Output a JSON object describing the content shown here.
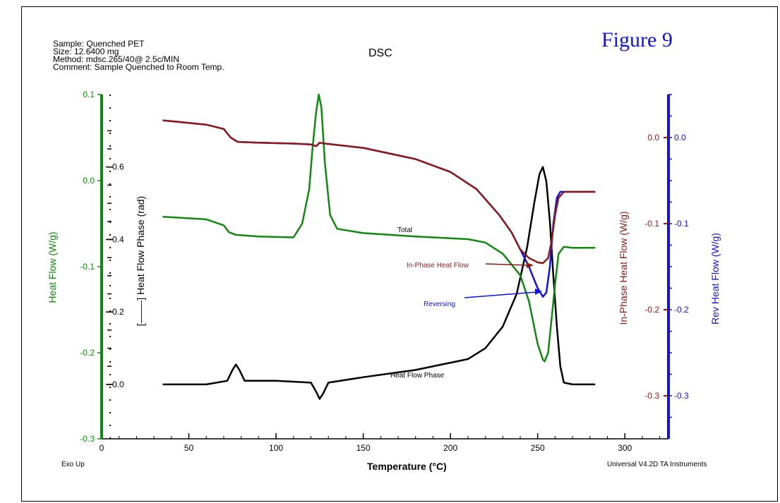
{
  "header": {
    "sample": "Sample: Quenched PET",
    "size": "Size:  12.6400 mg",
    "method": "Method: mdsc.265/40@ 2.5c/MIN",
    "comment": "Comment: Sample Quenched to Room Temp."
  },
  "figure_label": "Figure 9",
  "footer": {
    "exo": "Exo Up",
    "software": "Universal V4.2D TA Instruments"
  },
  "chart_data": {
    "type": "line",
    "title": "DSC",
    "xlabel": "Temperature (°C)",
    "xlim": [
      0,
      325
    ],
    "x_ticks": [
      0,
      50,
      100,
      150,
      200,
      250,
      300
    ],
    "axes": {
      "left_outer": {
        "label": "Heat Flow (W/g)",
        "color": "#128812",
        "ylim": [
          -0.3,
          0.1
        ],
        "ticks": [
          "0.1",
          "0.0",
          "-0.1",
          "-0.2",
          "-0.3"
        ],
        "tick_values": [
          0.1,
          0.0,
          -0.1,
          -0.2,
          -0.3
        ]
      },
      "left_inner": {
        "label": "[——-] Heat Flow Phase (rad)",
        "color": "#000000",
        "ticks": [
          "0.6",
          "0.4",
          "0.2",
          "0.0"
        ],
        "tick_values": [
          0.6,
          0.4,
          0.2,
          0.0
        ],
        "ylim": [
          -0.15,
          0.8
        ]
      },
      "right_inner": {
        "label": "In-Phase Heat Flow (W/g)",
        "color": "#8b1a1a",
        "ylim": [
          -0.35,
          0.05
        ],
        "ticks": [
          "0.0",
          "-0.1",
          "-0.2",
          "-0.3"
        ],
        "tick_values": [
          0.0,
          -0.1,
          -0.2,
          -0.3
        ]
      },
      "right_outer": {
        "label": "Rev Heat Flow (W/g)",
        "color": "#1212dd",
        "ylim": [
          -0.35,
          0.05
        ],
        "ticks": [
          "0.0",
          "-0.1",
          "-0.2",
          "-0.3"
        ],
        "tick_values": [
          0.0,
          -0.1,
          -0.2,
          -0.3
        ]
      }
    },
    "series": [
      {
        "name": "Total",
        "axis": "left_outer",
        "color": "#128812",
        "x": [
          35,
          60,
          70,
          73,
          77,
          90,
          110,
          115,
          119,
          121,
          123,
          124.5,
          126,
          128,
          131,
          135,
          150,
          180,
          210,
          220,
          230,
          240,
          245,
          250,
          253,
          254,
          256,
          258,
          260,
          262,
          265,
          270,
          283
        ],
        "y": [
          -0.042,
          -0.045,
          -0.052,
          -0.06,
          -0.063,
          -0.065,
          -0.066,
          -0.05,
          -0.01,
          0.04,
          0.08,
          0.1,
          0.085,
          0.02,
          -0.04,
          -0.056,
          -0.061,
          -0.065,
          -0.068,
          -0.072,
          -0.085,
          -0.11,
          -0.14,
          -0.19,
          -0.208,
          -0.21,
          -0.2,
          -0.16,
          -0.12,
          -0.085,
          -0.077,
          -0.078,
          -0.078
        ]
      },
      {
        "name": "Heat Flow Phase",
        "axis": "left_inner",
        "color": "#000000",
        "x": [
          35,
          60,
          72,
          75,
          77,
          79,
          82,
          100,
          120,
          123,
          125,
          127,
          130,
          150,
          180,
          210,
          220,
          230,
          238,
          244,
          248,
          251,
          253,
          255,
          257,
          259,
          261,
          263,
          265,
          270,
          283
        ],
        "y": [
          0.0,
          0.0,
          0.01,
          0.04,
          0.055,
          0.04,
          0.01,
          0.01,
          0.005,
          -0.02,
          -0.04,
          -0.025,
          0.005,
          0.02,
          0.04,
          0.07,
          0.1,
          0.16,
          0.25,
          0.38,
          0.5,
          0.58,
          0.6,
          0.56,
          0.45,
          0.3,
          0.16,
          0.05,
          0.005,
          0.0,
          0.0
        ]
      },
      {
        "name": "In-Phase Heat Flow",
        "axis": "right_inner",
        "color": "#8b1a1a",
        "x": [
          35,
          60,
          70,
          74,
          78,
          90,
          110,
          120,
          123,
          125,
          128,
          150,
          180,
          200,
          215,
          228,
          235,
          240,
          245,
          250,
          253,
          256,
          258,
          260,
          262,
          265,
          270,
          283
        ],
        "y": [
          0.02,
          0.015,
          0.01,
          0.0,
          -0.005,
          -0.006,
          -0.007,
          -0.008,
          -0.01,
          -0.006,
          -0.007,
          -0.012,
          -0.025,
          -0.04,
          -0.06,
          -0.09,
          -0.11,
          -0.13,
          -0.14,
          -0.145,
          -0.146,
          -0.14,
          -0.12,
          -0.09,
          -0.07,
          -0.063,
          -0.063,
          -0.063
        ]
      },
      {
        "name": "Reversing",
        "axis": "right_outer",
        "color": "#1212dd",
        "x": [
          35,
          60,
          70,
          74,
          78,
          90,
          110,
          120,
          123,
          125,
          128,
          150,
          180,
          200,
          215,
          228,
          235,
          240,
          245,
          250,
          253,
          255,
          257,
          259,
          261,
          263,
          265,
          270,
          283
        ],
        "y": [
          0.02,
          0.015,
          0.01,
          0.0,
          -0.005,
          -0.006,
          -0.007,
          -0.008,
          -0.01,
          -0.006,
          -0.007,
          -0.012,
          -0.025,
          -0.04,
          -0.06,
          -0.09,
          -0.11,
          -0.13,
          -0.15,
          -0.175,
          -0.185,
          -0.18,
          -0.15,
          -0.1,
          -0.07,
          -0.063,
          -0.063,
          -0.063,
          -0.063
        ]
      }
    ],
    "annotations": [
      "Total",
      "In-Phase Heat Flow",
      "Reversing",
      "Heat Flow Phase"
    ],
    "grid": false
  }
}
